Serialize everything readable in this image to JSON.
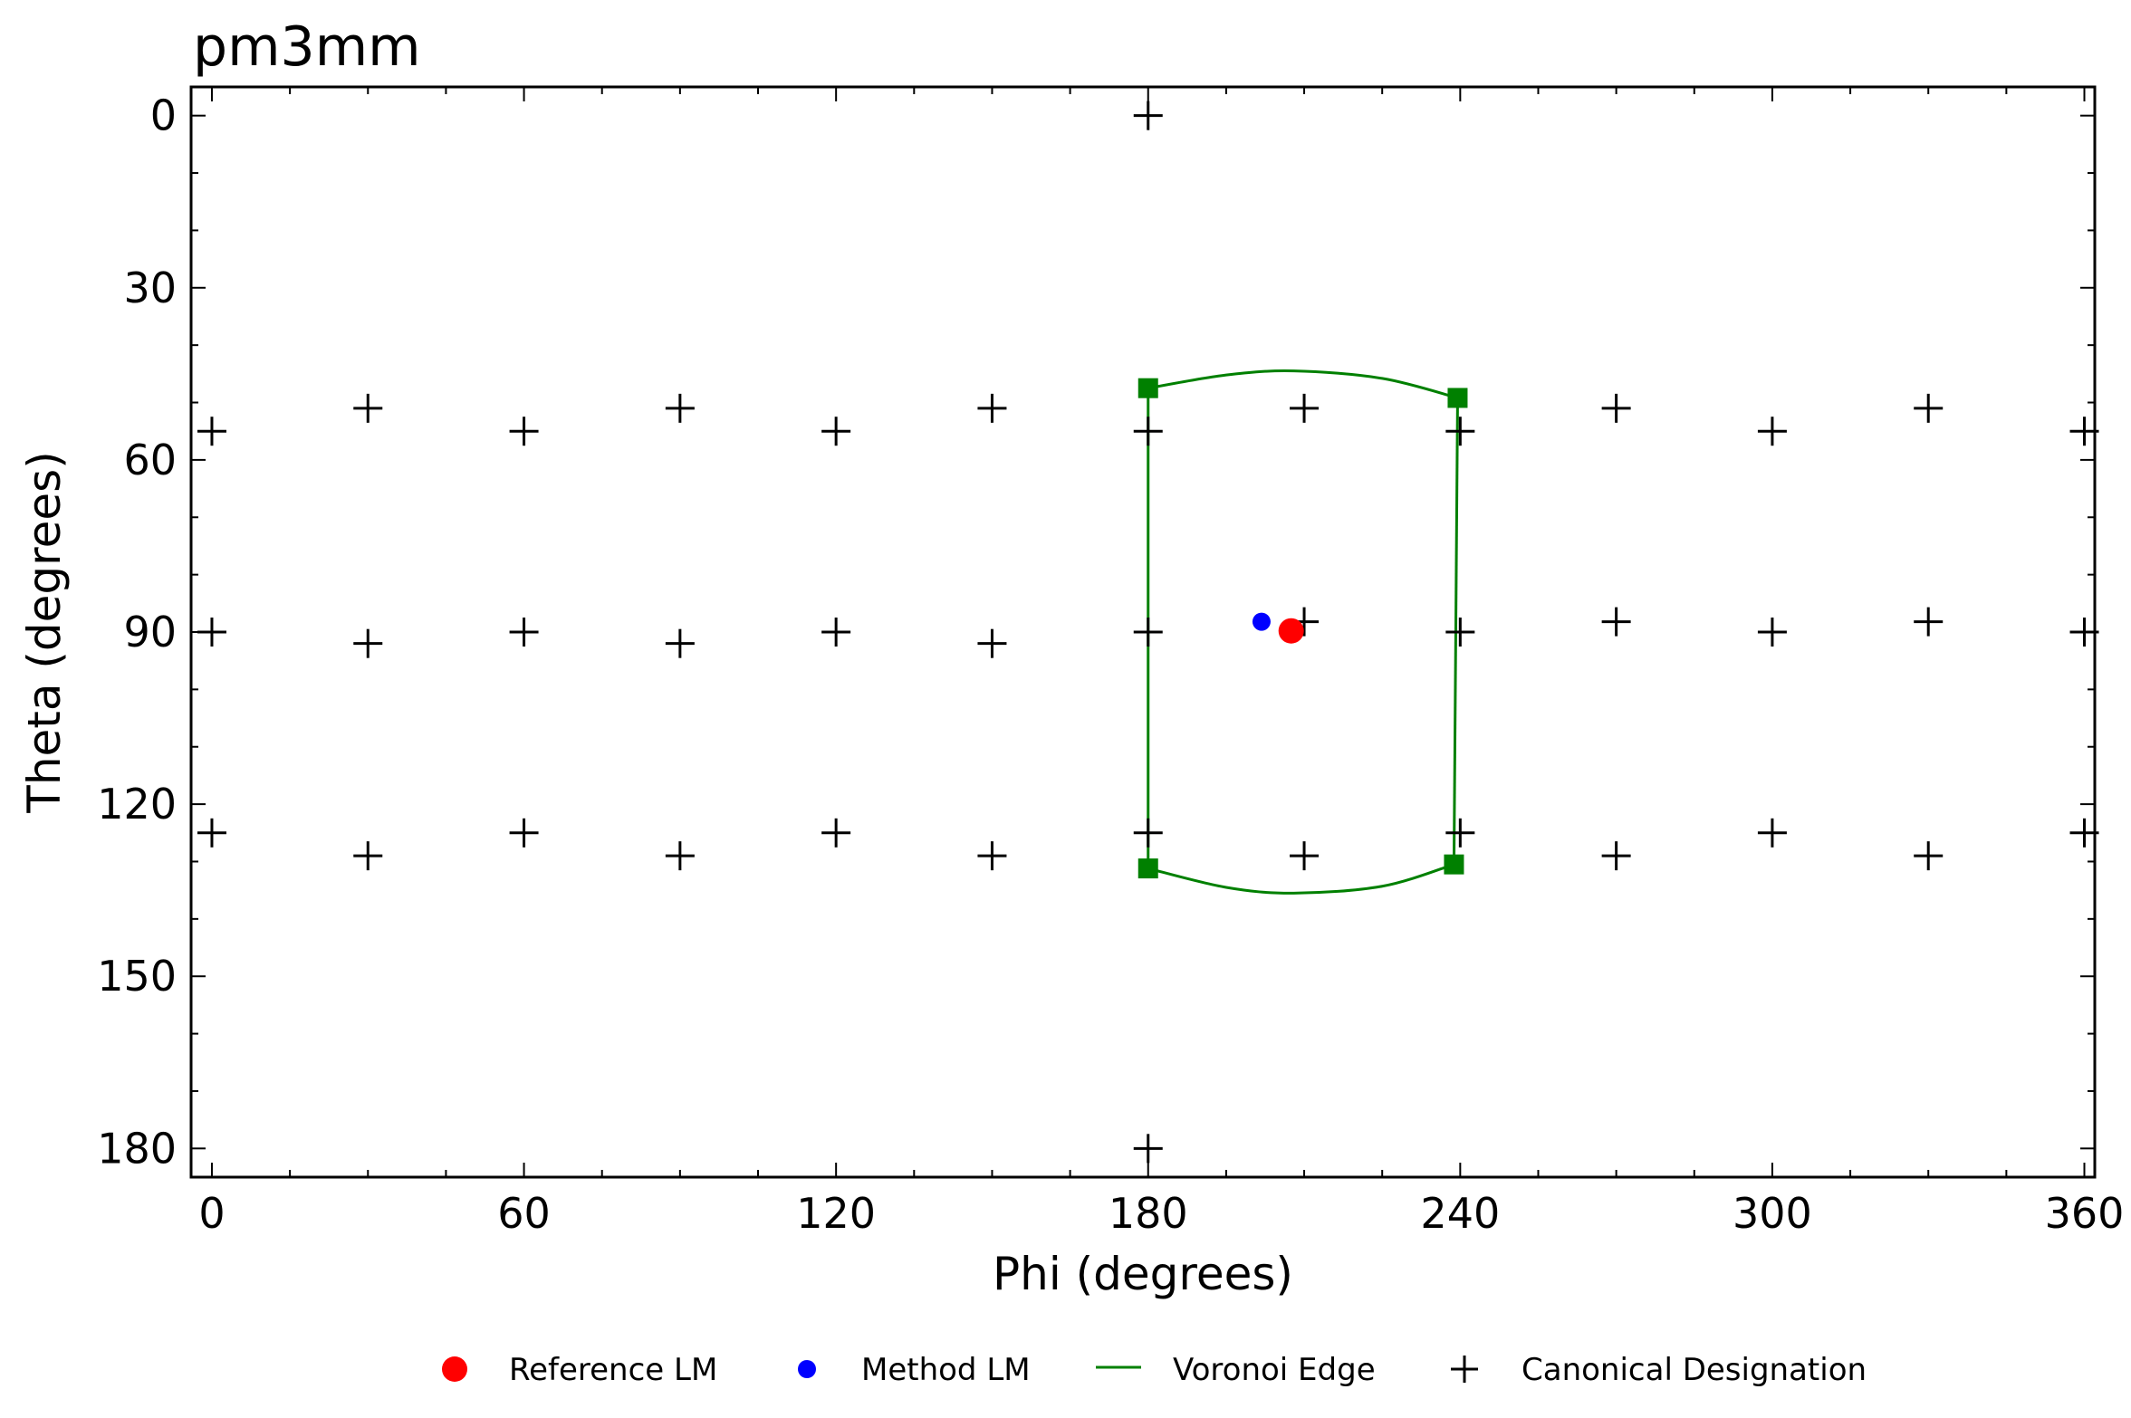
{
  "chart_data": {
    "type": "scatter",
    "title": "pm3mm",
    "xlabel": "Phi (degrees)",
    "ylabel": "Theta (degrees)",
    "xlim": [
      -4,
      362
    ],
    "ylim": [
      185,
      -5
    ],
    "y_inverted": true,
    "grid": false,
    "x_ticks": [
      0,
      60,
      120,
      180,
      240,
      300,
      360
    ],
    "y_ticks": [
      0,
      30,
      60,
      90,
      120,
      150,
      180
    ],
    "x_tick_labels": [
      "0",
      "60",
      "120",
      "180",
      "240",
      "300",
      "360"
    ],
    "y_tick_labels": [
      "0",
      "30",
      "60",
      "90",
      "120",
      "150",
      "180"
    ],
    "legend_position": "bottom-center",
    "series": [
      {
        "name": "Reference LM",
        "marker": "circle",
        "color": "#ff0000",
        "points": [
          [
            207.5,
            89.8
          ]
        ]
      },
      {
        "name": "Method LM",
        "marker": "circle",
        "color": "#0000ff",
        "points": [
          [
            201.8,
            88.2
          ]
        ]
      },
      {
        "name": "Voronoi Edge",
        "marker": "line",
        "color": "#008000",
        "vertices": [
          [
            180,
            47.5
          ],
          [
            239.5,
            49.2
          ],
          [
            238.8,
            130.5
          ],
          [
            180,
            131.2
          ]
        ],
        "edges": [
          [
            [
              180,
              47.5
            ],
            [
              195,
              45.2
            ],
            [
              208,
              44.5
            ],
            [
              225,
              45.8
            ],
            [
              239.5,
              49.2
            ]
          ],
          [
            [
              239.5,
              49.2
            ],
            [
              238.8,
              130.5
            ]
          ],
          [
            [
              238.8,
              130.5
            ],
            [
              225,
              134.3
            ],
            [
              208,
              135.5
            ],
            [
              195,
              134.5
            ],
            [
              180,
              131.2
            ]
          ],
          [
            [
              180,
              131.2
            ],
            [
              180,
              47.5
            ]
          ]
        ]
      },
      {
        "name": "Canonical Designation",
        "marker": "plus",
        "color": "#000000",
        "points": [
          [
            180,
            0
          ],
          [
            180,
            180
          ],
          [
            0,
            55
          ],
          [
            60,
            55
          ],
          [
            120,
            55
          ],
          [
            180,
            55
          ],
          [
            240,
            55
          ],
          [
            300,
            55
          ],
          [
            360,
            55
          ],
          [
            30,
            51
          ],
          [
            90,
            51
          ],
          [
            150,
            51
          ],
          [
            210,
            51
          ],
          [
            270,
            51
          ],
          [
            330,
            51
          ],
          [
            0,
            90
          ],
          [
            60,
            90
          ],
          [
            120,
            90
          ],
          [
            180,
            90
          ],
          [
            240,
            90
          ],
          [
            300,
            90
          ],
          [
            360,
            90
          ],
          [
            30,
            92
          ],
          [
            90,
            92
          ],
          [
            150,
            92
          ],
          [
            210,
            88.2
          ],
          [
            270,
            88.2
          ],
          [
            330,
            88.2
          ],
          [
            0,
            125
          ],
          [
            60,
            125
          ],
          [
            120,
            125
          ],
          [
            180,
            125
          ],
          [
            240,
            125
          ],
          [
            300,
            125
          ],
          [
            360,
            125
          ],
          [
            30,
            129
          ],
          [
            90,
            129
          ],
          [
            150,
            129
          ],
          [
            210,
            129
          ],
          [
            270,
            129
          ],
          [
            330,
            129
          ]
        ]
      }
    ]
  }
}
